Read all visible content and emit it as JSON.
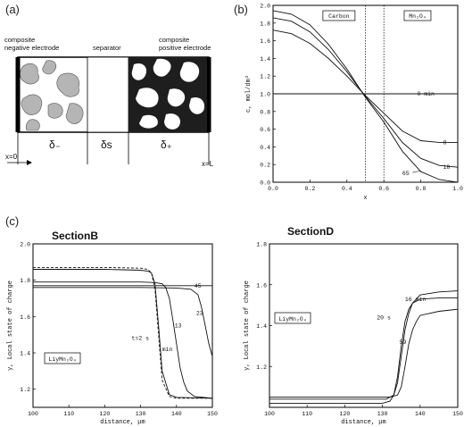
{
  "panel_a": {
    "label": "(a)",
    "neg_label_line1": "composite",
    "neg_label_line2": "negative electrode",
    "separator_label": "separator",
    "pos_label_line1": "composite",
    "pos_label_line2": "positive electrode",
    "delta_minus": "δ₋",
    "delta_s": "δs",
    "delta_plus": "δ₊",
    "x0_label": "x=0",
    "xL_label": "x=L"
  },
  "panel_b": {
    "label": "(b)"
  },
  "panel_c": {
    "label": "(c)"
  },
  "chart_data": [
    {
      "type": "line",
      "panel": "(b)",
      "xlabel": "x",
      "ylabel": "c, mol/dm³",
      "xlim": [
        0.0,
        1.0
      ],
      "ylim": [
        0.0,
        2.0
      ],
      "xticks": [
        "0.0",
        "0.2",
        "0.4",
        "0.6",
        "0.8",
        "1.0"
      ],
      "yticks": [
        "0.0",
        "0.2",
        "0.4",
        "0.6",
        "0.8",
        "1.0",
        "1.2",
        "1.4",
        "1.6",
        "1.8",
        "2.0"
      ],
      "region_labels": [
        "Carbon",
        "Mn₂O₄"
      ],
      "boundaries": [
        0.5,
        0.6
      ],
      "series": [
        {
          "name": "0 min",
          "x": [
            0,
            1
          ],
          "y": [
            1.0,
            1.0
          ]
        },
        {
          "name": "8",
          "x": [
            0,
            0.1,
            0.2,
            0.3,
            0.4,
            0.5,
            0.6,
            0.7,
            0.8,
            0.9,
            1.0
          ],
          "y": [
            1.72,
            1.68,
            1.57,
            1.4,
            1.2,
            0.98,
            0.78,
            0.58,
            0.47,
            0.45,
            0.45
          ]
        },
        {
          "name": "18",
          "x": [
            0,
            0.1,
            0.2,
            0.3,
            0.4,
            0.5,
            0.6,
            0.7,
            0.8,
            0.9,
            1.0
          ],
          "y": [
            1.86,
            1.82,
            1.7,
            1.5,
            1.25,
            0.97,
            0.72,
            0.45,
            0.27,
            0.19,
            0.17
          ]
        },
        {
          "name": "65",
          "x": [
            0,
            0.1,
            0.2,
            0.3,
            0.4,
            0.5,
            0.6,
            0.7,
            0.8,
            0.9,
            1.0
          ],
          "y": [
            1.94,
            1.9,
            1.78,
            1.56,
            1.28,
            0.96,
            0.68,
            0.35,
            0.12,
            0.03,
            0.0
          ]
        }
      ]
    },
    {
      "type": "line",
      "panel": "SectionB",
      "title": "SectionB",
      "xlabel": "distance, μm",
      "ylabel": "y, Local state of charge",
      "xlim": [
        100,
        150
      ],
      "ylim": [
        1.1,
        2.0
      ],
      "xticks": [
        "100",
        "110",
        "120",
        "130",
        "140",
        "150"
      ],
      "yticks": [
        "1.2",
        "1.4",
        "1.6",
        "1.8",
        "2.0"
      ],
      "inset_label": "LiyMn₂O₄",
      "curve_labels": [
        "45",
        "t=2 s",
        "13",
        "23",
        "min"
      ],
      "series": [
        {
          "name": "t=2 s",
          "dashed": true,
          "x": [
            100,
            120,
            130,
            132,
            133,
            134,
            135,
            136,
            138,
            140,
            150
          ],
          "y": [
            1.87,
            1.87,
            1.866,
            1.86,
            1.84,
            1.75,
            1.5,
            1.25,
            1.16,
            1.15,
            1.15
          ]
        },
        {
          "name": "45",
          "x": [
            100,
            150
          ],
          "y": [
            1.77,
            1.77
          ]
        },
        {
          "name": "min",
          "x": [
            100,
            120,
            130,
            132,
            133,
            134,
            135,
            136,
            138,
            140,
            150
          ],
          "y": [
            1.86,
            1.86,
            1.855,
            1.85,
            1.84,
            1.78,
            1.55,
            1.3,
            1.17,
            1.155,
            1.15
          ]
        },
        {
          "name": "13",
          "x": [
            100,
            130,
            134,
            136,
            137,
            138,
            139,
            140,
            141,
            142,
            143,
            145,
            150
          ],
          "y": [
            1.79,
            1.79,
            1.787,
            1.78,
            1.76,
            1.7,
            1.58,
            1.45,
            1.32,
            1.24,
            1.19,
            1.16,
            1.15
          ]
        },
        {
          "name": "23",
          "x": [
            100,
            130,
            140,
            144,
            146,
            147,
            148,
            149,
            150
          ],
          "y": [
            1.76,
            1.76,
            1.757,
            1.75,
            1.72,
            1.65,
            1.55,
            1.45,
            1.38
          ]
        }
      ]
    },
    {
      "type": "line",
      "panel": "SectionD",
      "title": "SectionD",
      "xlabel": "distance, μm",
      "ylabel": "y, Local state of charge",
      "xlim": [
        100,
        150
      ],
      "ylim": [
        1.0,
        1.8
      ],
      "xticks": [
        "100",
        "110",
        "120",
        "130",
        "140",
        "150"
      ],
      "yticks": [
        "1.2",
        "1.4",
        "1.6",
        "1.8"
      ],
      "inset_label": "LiyMn₂O₄",
      "curve_labels": [
        "20 s",
        "16 min",
        "59"
      ],
      "series": [
        {
          "name": "20 s",
          "x": [
            100,
            130,
            132,
            133,
            134,
            135,
            136,
            137,
            138,
            140,
            145,
            150
          ],
          "y": [
            1.02,
            1.02,
            1.03,
            1.06,
            1.15,
            1.3,
            1.42,
            1.48,
            1.51,
            1.53,
            1.535,
            1.535
          ]
        },
        {
          "name": "16 min",
          "x": [
            100,
            131,
            133,
            134,
            135,
            136,
            137,
            138,
            140,
            145,
            150
          ],
          "y": [
            1.04,
            1.04,
            1.06,
            1.12,
            1.25,
            1.38,
            1.46,
            1.51,
            1.55,
            1.565,
            1.57
          ]
        },
        {
          "name": "59",
          "x": [
            100,
            132,
            134,
            135,
            136,
            137,
            138,
            139,
            140,
            145,
            150
          ],
          "y": [
            1.05,
            1.05,
            1.06,
            1.1,
            1.2,
            1.31,
            1.38,
            1.42,
            1.45,
            1.47,
            1.48
          ]
        }
      ]
    }
  ]
}
